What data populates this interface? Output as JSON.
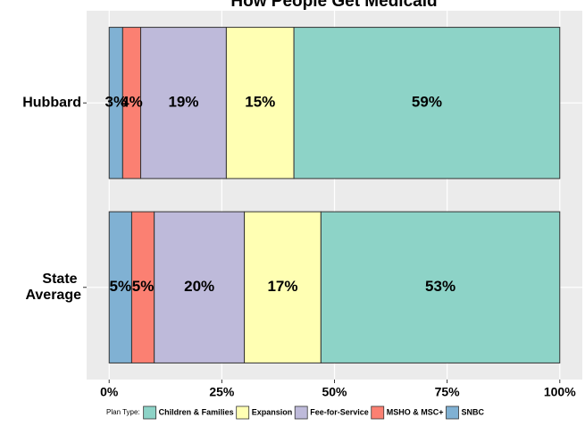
{
  "chart_data": {
    "type": "stacked-bar-horizontal",
    "title": "How People Get Medicaid",
    "categories": [
      "Hubbard",
      "State Average"
    ],
    "series": [
      {
        "name": "SNBC",
        "color": "#80b1d3",
        "values": [
          3,
          5
        ],
        "value_labels": [
          "3%",
          "5%"
        ]
      },
      {
        "name": "MSHO & MSC+",
        "color": "#fb8072",
        "values": [
          4,
          5
        ],
        "value_labels": [
          "4%",
          "5%"
        ]
      },
      {
        "name": "Fee-for-Service",
        "color": "#bebada",
        "values": [
          19,
          20
        ],
        "value_labels": [
          "19%",
          "20%"
        ]
      },
      {
        "name": "Expansion",
        "color": "#ffffb3",
        "values": [
          15,
          17
        ],
        "value_labels": [
          "15%",
          "17%"
        ]
      },
      {
        "name": "Children & Families",
        "color": "#8dd3c7",
        "values": [
          59,
          53
        ],
        "value_labels": [
          "59%",
          "53%"
        ]
      }
    ],
    "xlim": [
      -5,
      105
    ],
    "xticks": [
      {
        "value": 0,
        "label": "0%"
      },
      {
        "value": 25,
        "label": "25%"
      },
      {
        "value": 50,
        "label": "50%"
      },
      {
        "value": 75,
        "label": "75%"
      },
      {
        "value": 100,
        "label": "100%"
      }
    ],
    "legend_title": "Plan Type:",
    "legend_position": "bottom",
    "grid": true
  }
}
